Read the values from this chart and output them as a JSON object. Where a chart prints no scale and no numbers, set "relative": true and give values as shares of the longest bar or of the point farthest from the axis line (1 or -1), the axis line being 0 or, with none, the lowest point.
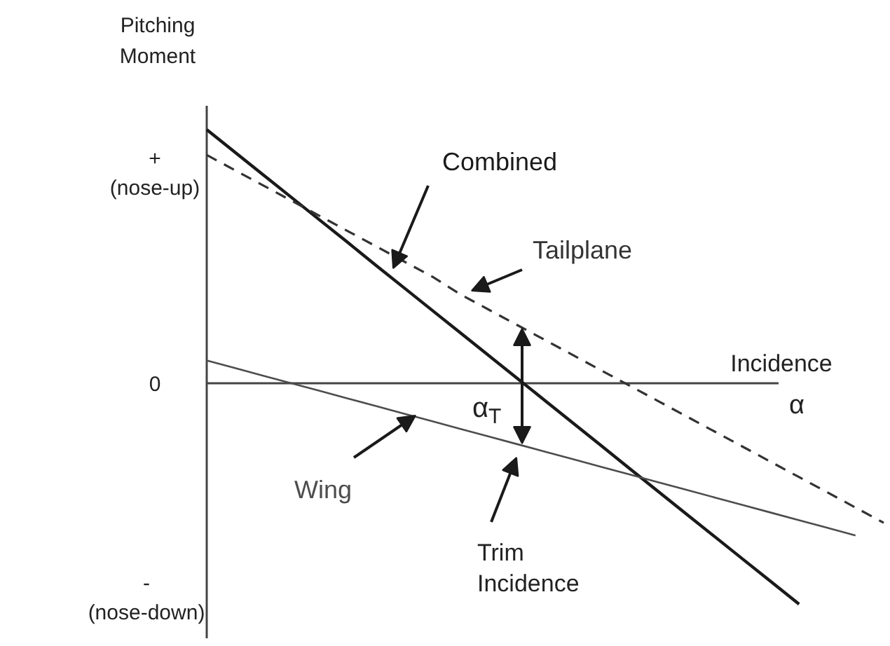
{
  "chart_data": {
    "type": "line",
    "relative": true,
    "ylabel": "Pitching\nMoment",
    "xlabel": "Incidence",
    "categories": [
      null,
      null,
      null,
      null,
      null,
      null,
      null,
      null,
      null,
      null,
      null,
      null,
      null,
      null,
      null,
      null,
      null,
      null,
      null,
      null,
      null,
      null,
      null,
      null,
      null
    ],
    "series": [
      {
        "name": "Combined",
        "color": "#1a1a1a",
        "values": [
          1.0,
          0.911,
          0.822,
          0.733,
          0.644,
          0.555,
          0.465,
          0.376,
          0.287,
          0.198,
          0.109,
          0.02,
          -0.069,
          -0.158,
          -0.247,
          -0.337,
          -0.426,
          -0.515,
          -0.604,
          -0.693,
          -0.782,
          -0.871,
          null,
          null,
          null
        ]
      },
      {
        "name": "Tailplane",
        "color": "#333333",
        "line_style": "dashed",
        "values": [
          0.9,
          0.84,
          0.78,
          0.72,
          0.66,
          0.6,
          0.54,
          0.48,
          0.42,
          0.35,
          0.29,
          0.23,
          0.17,
          0.11,
          0.05,
          -0.01,
          -0.07,
          -0.13,
          -0.19,
          -0.25,
          -0.31,
          -0.37,
          -0.43,
          -0.49,
          -0.55
        ]
      },
      {
        "name": "Wing",
        "color": "#4d4d4d",
        "values": [
          0.09,
          0.06,
          0.03,
          0.0,
          -0.03,
          -0.06,
          -0.09,
          -0.12,
          -0.15,
          -0.18,
          -0.21,
          -0.24,
          -0.27,
          -0.3,
          -0.33,
          -0.36,
          -0.39,
          -0.42,
          -0.45,
          -0.48,
          -0.51,
          -0.54,
          -0.57,
          -0.6,
          null
        ]
      }
    ],
    "annotations": [
      "+\n(nose-up)",
      "0",
      "-\n(nose-down)",
      "α",
      "α$_{T}$",
      "Trim\nIncidence"
    ]
  }
}
